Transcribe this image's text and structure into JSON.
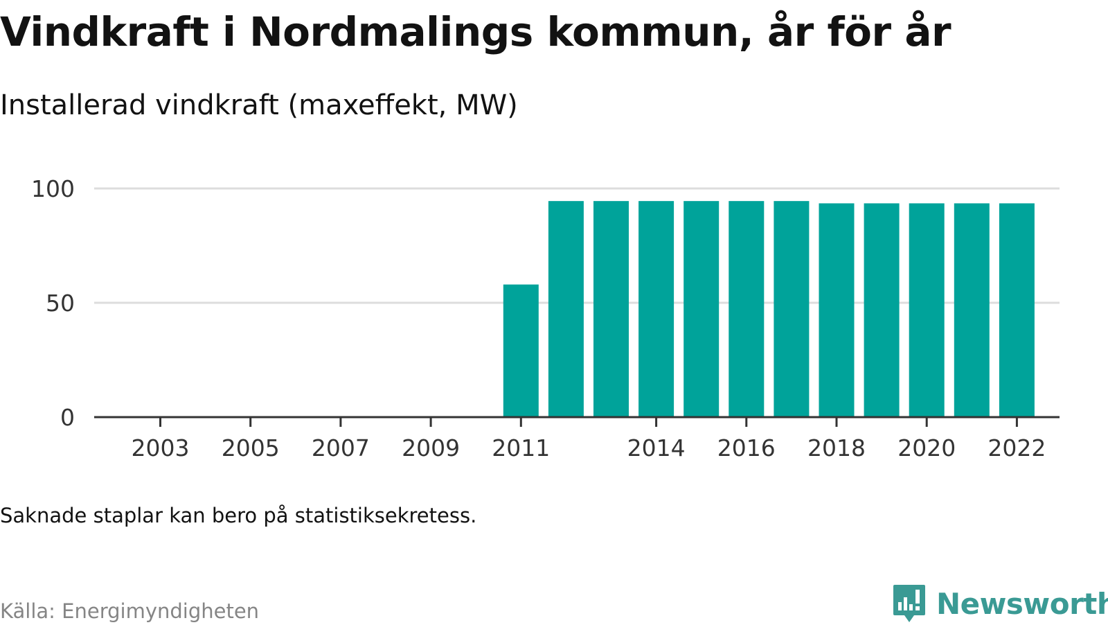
{
  "header": {
    "title": "Vindkraft i Nordmalings kommun, år för år",
    "subtitle": "Installerad vindkraft (maxeffekt, MW)"
  },
  "footer": {
    "note": "Saknade staplar kan bero på statistiksekretess.",
    "source": "Källa: Energimyndigheten",
    "logo_text": "Newsworthy",
    "logo_icon": "bar-chart-speech-bubble-icon"
  },
  "colors": {
    "bar": "#00a39a",
    "grid": "#dddddd",
    "axis": "#333333",
    "logo": "#3a9a94"
  },
  "chart_data": {
    "type": "bar",
    "title": "Vindkraft i Nordmalings kommun, år för år",
    "subtitle": "Installerad vindkraft (maxeffekt, MW)",
    "categories": [
      "2003",
      "2004",
      "2005",
      "2006",
      "2007",
      "2008",
      "2009",
      "2010",
      "2011",
      "2012",
      "2013",
      "2014",
      "2015",
      "2016",
      "2017",
      "2018",
      "2019",
      "2020",
      "2021",
      "2022"
    ],
    "values": [
      0,
      0,
      0,
      0,
      0,
      0,
      0,
      0,
      58,
      94.5,
      94.5,
      94.5,
      94.5,
      94.5,
      94.5,
      93.5,
      93.5,
      93.5,
      93.5,
      93.5
    ],
    "x_tick_labels": [
      "2003",
      "2005",
      "2007",
      "2009",
      "2011",
      "2014",
      "2016",
      "2018",
      "2020",
      "2022"
    ],
    "y_ticks": [
      0,
      50,
      100
    ],
    "ylim": [
      0,
      100
    ],
    "xlabel": "",
    "ylabel": "",
    "grid": true,
    "legend": "none"
  }
}
